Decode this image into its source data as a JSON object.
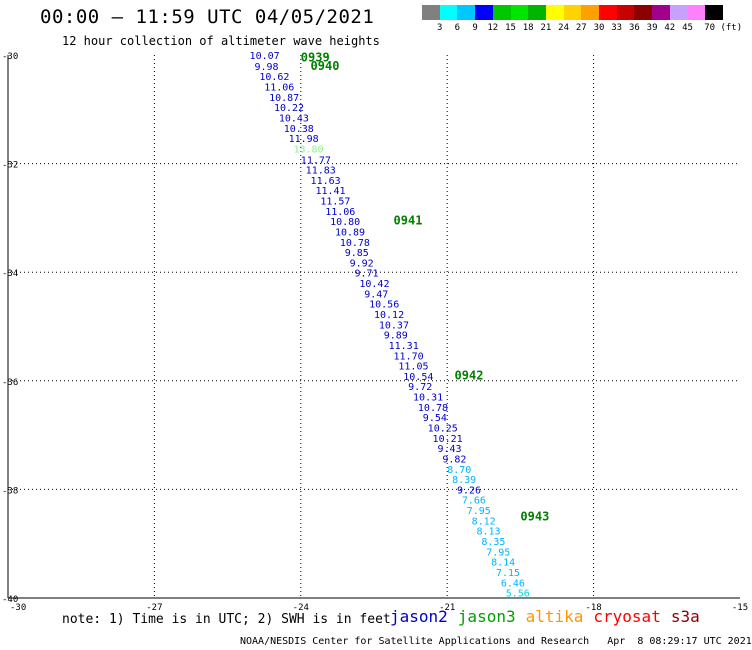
{
  "header": {
    "title": "00:00 – 11:59 UTC 04/05/2021",
    "subtitle": "12 hour collection of altimeter wave heights"
  },
  "colorbar": {
    "colors": [
      "#808080",
      "#00ffff",
      "#00c8ff",
      "#0000ff",
      "#00c800",
      "#00e600",
      "#00b400",
      "#ffff00",
      "#ffd200",
      "#ffa000",
      "#ff0000",
      "#c80000",
      "#8c0000",
      "#a0008c",
      "#c8a0ff",
      "#ff80ff",
      "#000000"
    ],
    "labels": [
      "3",
      "6",
      "9",
      "12",
      "15",
      "18",
      "21",
      "24",
      "27",
      "30",
      "33",
      "36",
      "39",
      "42",
      "45",
      "70 (ft)"
    ]
  },
  "map": {
    "lon_ticks": [
      "-27",
      "-24",
      "-21",
      "-18",
      "-15"
    ],
    "lon_origin_label": "-30",
    "lat_ticks": [
      "-30",
      "-32",
      "-34",
      "-36",
      "-38",
      "-40"
    ],
    "lat_ticks_bottom_extra": "-30",
    "passes": [
      {
        "label": "0939",
        "lon": -24.0,
        "lat": -30.05
      },
      {
        "label": "0940",
        "lon": -23.8,
        "lat": -30.2
      },
      {
        "label": "0941",
        "lon": -22.1,
        "lat": -33.05
      },
      {
        "label": "0942",
        "lon": -20.85,
        "lat": -35.9
      },
      {
        "label": "0943",
        "lon": -19.5,
        "lat": -38.5
      }
    ],
    "track": [
      {
        "v": "10.07",
        "color": "#0000c8",
        "lon": -25.05,
        "lat": -30.0
      },
      {
        "v": "9.98",
        "color": "#0000c8",
        "lon": -24.95,
        "lat": -30.2
      },
      {
        "v": "10.62",
        "color": "#0000c8",
        "lon": -24.85,
        "lat": -30.39
      },
      {
        "v": "11.06",
        "color": "#0000c8",
        "lon": -24.75,
        "lat": -30.58
      },
      {
        "v": "10.87",
        "color": "#0000c8",
        "lon": -24.65,
        "lat": -30.77
      },
      {
        "v": "10.22",
        "color": "#0000c8",
        "lon": -24.55,
        "lat": -30.96
      },
      {
        "v": "10.43",
        "color": "#0000c8",
        "lon": -24.45,
        "lat": -31.15
      },
      {
        "v": "10.38",
        "color": "#0000c8",
        "lon": -24.35,
        "lat": -31.34
      },
      {
        "v": "11.98",
        "color": "#0000c8",
        "lon": -24.25,
        "lat": -31.53
      },
      {
        "v": "13.80",
        "color": "#90ee90",
        "lon": -24.15,
        "lat": -31.72
      },
      {
        "v": "11.77",
        "color": "#0000c8",
        "lon": -24.0,
        "lat": -31.92
      },
      {
        "v": "11.83",
        "color": "#0000c8",
        "lon": -23.9,
        "lat": -32.11
      },
      {
        "v": "11.63",
        "color": "#0000c8",
        "lon": -23.8,
        "lat": -32.3
      },
      {
        "v": "11.41",
        "color": "#0000c8",
        "lon": -23.7,
        "lat": -32.49
      },
      {
        "v": "11.57",
        "color": "#0000c8",
        "lon": -23.6,
        "lat": -32.68
      },
      {
        "v": "11.06",
        "color": "#0000c8",
        "lon": -23.5,
        "lat": -32.87
      },
      {
        "v": "10.80",
        "color": "#0000c8",
        "lon": -23.4,
        "lat": -33.06
      },
      {
        "v": "10.89",
        "color": "#0000c8",
        "lon": -23.3,
        "lat": -33.25
      },
      {
        "v": "10.78",
        "color": "#0000c8",
        "lon": -23.2,
        "lat": -33.44
      },
      {
        "v": "9.85",
        "color": "#0000c8",
        "lon": -23.1,
        "lat": -33.63
      },
      {
        "v": "9.92",
        "color": "#0000c8",
        "lon": -23.0,
        "lat": -33.82
      },
      {
        "v": "9.71",
        "color": "#0000c8",
        "lon": -22.9,
        "lat": -34.01
      },
      {
        "v": "10.42",
        "color": "#0000c8",
        "lon": -22.8,
        "lat": -34.2
      },
      {
        "v": "9.47",
        "color": "#0000c8",
        "lon": -22.7,
        "lat": -34.39
      },
      {
        "v": "10.56",
        "color": "#0000c8",
        "lon": -22.6,
        "lat": -34.58
      },
      {
        "v": "10.12",
        "color": "#0000c8",
        "lon": -22.5,
        "lat": -34.77
      },
      {
        "v": "10.37",
        "color": "#0000c8",
        "lon": -22.4,
        "lat": -34.96
      },
      {
        "v": "9.89",
        "color": "#0000c8",
        "lon": -22.3,
        "lat": -35.15
      },
      {
        "v": "11.31",
        "color": "#0000c8",
        "lon": -22.2,
        "lat": -35.34
      },
      {
        "v": "11.70",
        "color": "#0000c8",
        "lon": -22.1,
        "lat": -35.53
      },
      {
        "v": "11.05",
        "color": "#0000c8",
        "lon": -22.0,
        "lat": -35.72
      },
      {
        "v": "10.54",
        "color": "#0000c8",
        "lon": -21.9,
        "lat": -35.91
      },
      {
        "v": "9.72",
        "color": "#0000c8",
        "lon": -21.8,
        "lat": -36.1
      },
      {
        "v": "10.31",
        "color": "#0000c8",
        "lon": -21.7,
        "lat": -36.29
      },
      {
        "v": "10.78",
        "color": "#0000c8",
        "lon": -21.6,
        "lat": -36.48
      },
      {
        "v": "9.54",
        "color": "#0000c8",
        "lon": -21.5,
        "lat": -36.67
      },
      {
        "v": "10.25",
        "color": "#0000c8",
        "lon": -21.4,
        "lat": -36.86
      },
      {
        "v": "10.21",
        "color": "#0000c8",
        "lon": -21.3,
        "lat": -37.05
      },
      {
        "v": "9.43",
        "color": "#0000c8",
        "lon": -21.2,
        "lat": -37.24
      },
      {
        "v": "9.82",
        "color": "#0000c8",
        "lon": -21.1,
        "lat": -37.43
      },
      {
        "v": "8.70",
        "color": "#00b4ff",
        "lon": -21.0,
        "lat": -37.62
      },
      {
        "v": "8.39",
        "color": "#00b4ff",
        "lon": -20.9,
        "lat": -37.81
      },
      {
        "v": "9.26",
        "color": "#0000c8",
        "lon": -20.8,
        "lat": -38.0
      },
      {
        "v": "7.66",
        "color": "#00b4ff",
        "lon": -20.7,
        "lat": -38.19
      },
      {
        "v": "7.95",
        "color": "#00b4ff",
        "lon": -20.6,
        "lat": -38.38
      },
      {
        "v": "8.12",
        "color": "#00b4ff",
        "lon": -20.5,
        "lat": -38.57
      },
      {
        "v": "8.13",
        "color": "#00b4ff",
        "lon": -20.4,
        "lat": -38.76
      },
      {
        "v": "8.35",
        "color": "#00b4ff",
        "lon": -20.3,
        "lat": -38.95
      },
      {
        "v": "7.95",
        "color": "#00b4ff",
        "lon": -20.2,
        "lat": -39.14
      },
      {
        "v": "8.14",
        "color": "#00b4ff",
        "lon": -20.1,
        "lat": -39.33
      },
      {
        "v": "7.15",
        "color": "#00b4ff",
        "lon": -20.0,
        "lat": -39.52
      },
      {
        "v": "6.46",
        "color": "#00b4ff",
        "lon": -19.9,
        "lat": -39.71
      },
      {
        "v": "5.56",
        "color": "#00d4e6",
        "lon": -19.8,
        "lat": -39.9
      }
    ]
  },
  "note": "note: 1) Time is in UTC; 2) SWH is in feet",
  "satellites": [
    {
      "name": "jason2",
      "color": "#0000c8"
    },
    {
      "name": "jason3",
      "color": "#00a000"
    },
    {
      "name": "altika",
      "color": "#ff9600"
    },
    {
      "name": "cryosat",
      "color": "#ff0000"
    },
    {
      "name": "s3a",
      "color": "#8c0000"
    }
  ],
  "footer": "NOAA/NESDIS Center for Satellite Applications and Research   Apr  8 08:29:17 UTC 2021"
}
